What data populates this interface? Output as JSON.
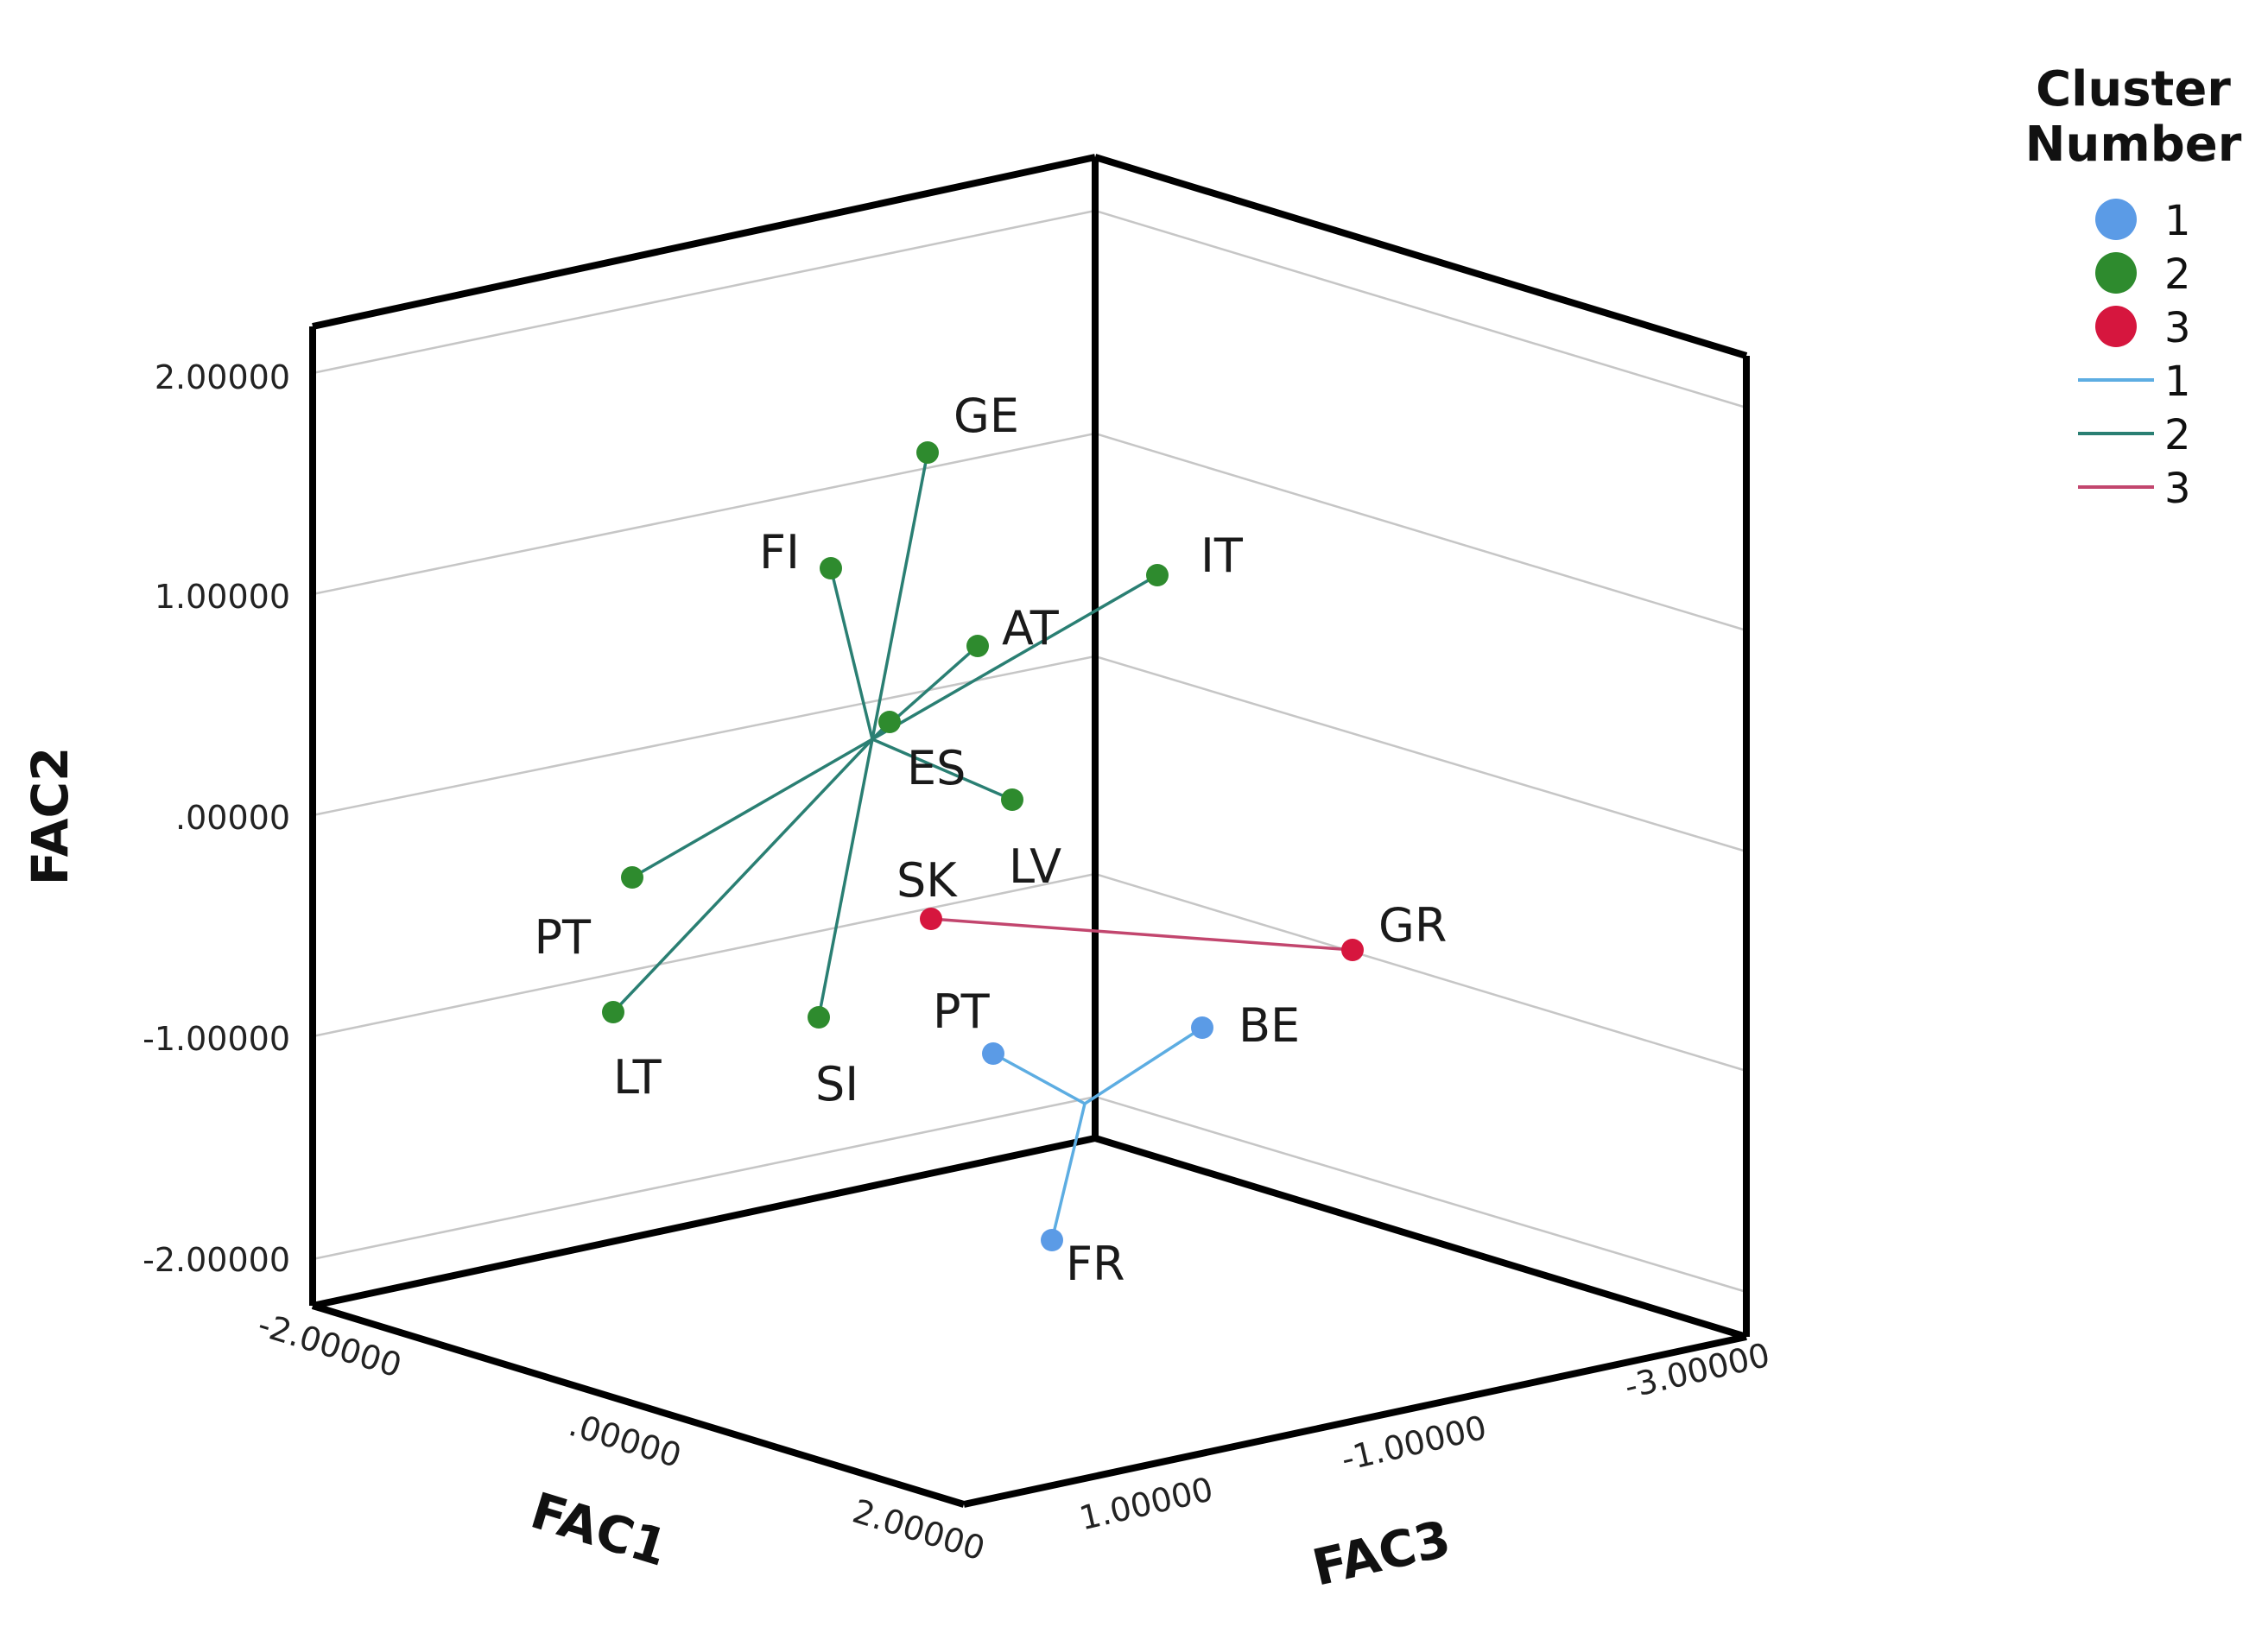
{
  "chart_data": {
    "type": "scatter",
    "subtype": "3d-scatter-with-centroid-lines",
    "axes": {
      "x": {
        "label": "FAC1",
        "ticks": [
          -2,
          0,
          2
        ],
        "tick_labels": [
          "-2.00000",
          ".00000",
          "2.00000"
        ],
        "range": [
          -2.2,
          2.2
        ]
      },
      "y": {
        "label": "FAC2",
        "ticks": [
          -2,
          -1,
          0,
          1,
          2
        ],
        "tick_labels": [
          "-2.00000",
          "-1.00000",
          ".00000",
          "1.00000",
          "2.00000"
        ],
        "range": [
          -2.2,
          2.2
        ]
      },
      "z": {
        "label": "FAC3",
        "ticks": [
          1,
          -1,
          -3
        ],
        "tick_labels": [
          "1.00000",
          "-1.00000",
          "-3.00000"
        ],
        "range": [
          2,
          -3.5
        ]
      }
    },
    "grid": true,
    "legend": {
      "title": "Cluster Number",
      "position": "top-right",
      "markers": [
        {
          "label": "1",
          "color": "#5B9BE6"
        },
        {
          "label": "2",
          "color": "#2E8B2E"
        },
        {
          "label": "3",
          "color": "#D6163E"
        }
      ],
      "lines": [
        {
          "label": "1",
          "color": "#5DADE2"
        },
        {
          "label": "2",
          "color": "#2A7F73"
        },
        {
          "label": "3",
          "color": "#C2466E"
        }
      ]
    },
    "clusters": [
      {
        "name": "1",
        "centroid": {
          "x": 0.9,
          "y": -1.34,
          "z": -0.9
        }
      },
      {
        "name": "2",
        "centroid": {
          "x": -0.5,
          "y": 0.34,
          "z": 0.0
        }
      },
      {
        "name": "3",
        "centroid": null
      }
    ],
    "points": [
      {
        "label": "GE",
        "cluster": "2",
        "x": -0.2,
        "y": 1.63,
        "z": 0.1
      },
      {
        "label": "FI",
        "cluster": "2",
        "x": -0.9,
        "y": 1.11,
        "z": 0.4
      },
      {
        "label": "IT",
        "cluster": "2",
        "x": 0.4,
        "y": 1.08,
        "z": -1.8
      },
      {
        "label": "AT",
        "cluster": "2",
        "x": -0.1,
        "y": 0.75,
        "z": -0.6
      },
      {
        "label": "ES",
        "cluster": "2",
        "x": -0.6,
        "y": 0.41,
        "z": 0.1
      },
      {
        "label": "LV",
        "cluster": "2",
        "x": 0.2,
        "y": 0.06,
        "z": -0.6
      },
      {
        "label": "PT",
        "cluster": "2",
        "x": -1.8,
        "y": -0.28,
        "z": 1.0
      },
      {
        "label": "LT",
        "cluster": "2",
        "x": -1.6,
        "y": -0.91,
        "z": 1.5
      },
      {
        "label": "SI",
        "cluster": "2",
        "x": -0.1,
        "y": -0.93,
        "z": 1.6
      },
      {
        "label": "SK",
        "cluster": "3",
        "x": 0.1,
        "y": -0.48,
        "z": -0.1
      },
      {
        "label": "GR",
        "cluster": "3",
        "x": 0.8,
        "y": -0.62,
        "z": -2.5
      },
      {
        "label": "PT",
        "cluster": "1",
        "x": 0.9,
        "y": -1.08,
        "z": 0.4
      },
      {
        "label": "BE",
        "cluster": "1",
        "x": 1.2,
        "y": -0.97,
        "z": -1.3
      },
      {
        "label": "FR",
        "cluster": "1",
        "x": 1.3,
        "y": -1.92,
        "z": -0.5
      }
    ],
    "connections": [
      {
        "cluster": "2",
        "from": "centroid",
        "to": "GE"
      },
      {
        "cluster": "2",
        "from": "centroid",
        "to": "FI"
      },
      {
        "cluster": "2",
        "from": "centroid",
        "to": "IT"
      },
      {
        "cluster": "2",
        "from": "centroid",
        "to": "AT"
      },
      {
        "cluster": "2",
        "from": "centroid",
        "to": "ES"
      },
      {
        "cluster": "2",
        "from": "centroid",
        "to": "LV"
      },
      {
        "cluster": "2",
        "from": "centroid",
        "to": "PT"
      },
      {
        "cluster": "2",
        "from": "centroid",
        "to": "LT"
      },
      {
        "cluster": "2",
        "from": "centroid",
        "to": "SI"
      },
      {
        "cluster": "3",
        "from": "SK",
        "to": "GR"
      },
      {
        "cluster": "1",
        "from": "centroid",
        "to": "PT"
      },
      {
        "cluster": "1",
        "from": "centroid",
        "to": "BE"
      },
      {
        "cluster": "1",
        "from": "centroid",
        "to": "FR"
      }
    ]
  }
}
